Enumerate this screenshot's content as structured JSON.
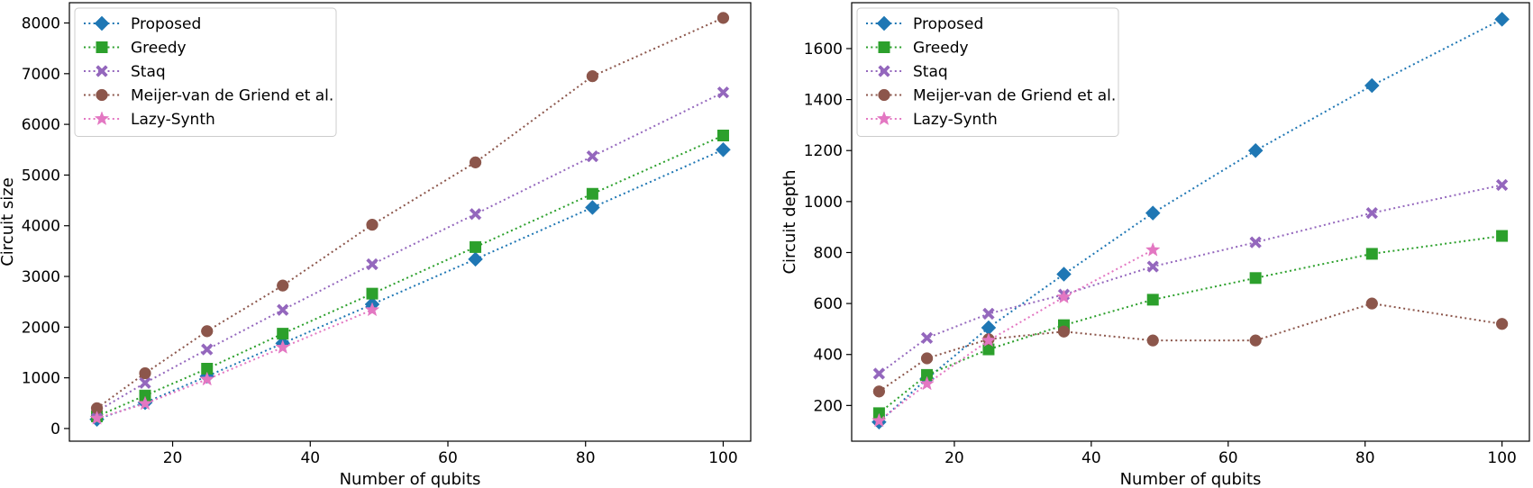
{
  "chart_data": [
    {
      "type": "line",
      "title": "",
      "xlabel": "Number of qubits",
      "ylabel": "Circuit size",
      "xlim": [
        5,
        104
      ],
      "ylim": [
        -250,
        8400
      ],
      "xticks": [
        20,
        40,
        60,
        80,
        100
      ],
      "yticks": [
        0,
        1000,
        2000,
        3000,
        4000,
        5000,
        6000,
        7000,
        8000
      ],
      "grid": false,
      "legend_position": "top-left",
      "series": [
        {
          "name": "Proposed",
          "color": "#1f77b4",
          "marker": "diamond",
          "x": [
            9,
            16,
            25,
            36,
            49,
            64,
            81,
            100
          ],
          "y": [
            180,
            510,
            1030,
            1680,
            2450,
            3340,
            4360,
            5500
          ]
        },
        {
          "name": "Greedy",
          "color": "#2ca02c",
          "marker": "square",
          "x": [
            9,
            16,
            25,
            36,
            49,
            64,
            81,
            100
          ],
          "y": [
            240,
            650,
            1180,
            1870,
            2660,
            3580,
            4630,
            5780
          ]
        },
        {
          "name": "Staq",
          "color": "#9467bd",
          "marker": "x-filled",
          "x": [
            9,
            16,
            25,
            36,
            49,
            64,
            81,
            100
          ],
          "y": [
            340,
            900,
            1560,
            2340,
            3240,
            4230,
            5370,
            6630
          ]
        },
        {
          "name": "Meijer-van de Griend et al.",
          "color": "#8c564b",
          "marker": "circle",
          "x": [
            9,
            16,
            25,
            36,
            49,
            64,
            81,
            100
          ],
          "y": [
            400,
            1090,
            1920,
            2820,
            4020,
            5250,
            6950,
            8100
          ]
        },
        {
          "name": "Lazy-Synth",
          "color": "#e377c2",
          "marker": "star",
          "x": [
            9,
            16,
            25,
            36,
            49
          ],
          "y": [
            200,
            490,
            970,
            1600,
            2340
          ]
        }
      ]
    },
    {
      "type": "line",
      "title": "",
      "xlabel": "Number of qubits",
      "ylabel": "Circuit depth",
      "xlim": [
        5,
        104
      ],
      "ylim": [
        60,
        1780
      ],
      "xticks": [
        20,
        40,
        60,
        80,
        100
      ],
      "yticks": [
        200,
        400,
        600,
        800,
        1000,
        1200,
        1400,
        1600
      ],
      "grid": false,
      "legend_position": "top-left",
      "series": [
        {
          "name": "Proposed",
          "color": "#1f77b4",
          "marker": "diamond",
          "x": [
            9,
            16,
            25,
            36,
            49,
            64,
            81,
            100
          ],
          "y": [
            135,
            305,
            505,
            715,
            955,
            1200,
            1455,
            1715
          ]
        },
        {
          "name": "Greedy",
          "color": "#2ca02c",
          "marker": "square",
          "x": [
            9,
            16,
            25,
            36,
            49,
            64,
            81,
            100
          ],
          "y": [
            170,
            320,
            420,
            515,
            615,
            700,
            795,
            865
          ]
        },
        {
          "name": "Staq",
          "color": "#9467bd",
          "marker": "x-filled",
          "x": [
            9,
            16,
            25,
            36,
            49,
            64,
            81,
            100
          ],
          "y": [
            325,
            465,
            560,
            635,
            745,
            840,
            955,
            1065
          ]
        },
        {
          "name": "Meijer-van de Griend et al.",
          "color": "#8c564b",
          "marker": "circle",
          "x": [
            9,
            16,
            25,
            36,
            49,
            64,
            81,
            100
          ],
          "y": [
            255,
            385,
            460,
            490,
            455,
            455,
            600,
            520
          ]
        },
        {
          "name": "Lazy-Synth",
          "color": "#e377c2",
          "marker": "star",
          "x": [
            9,
            16,
            25,
            36,
            49
          ],
          "y": [
            140,
            285,
            455,
            625,
            810
          ]
        }
      ]
    }
  ]
}
